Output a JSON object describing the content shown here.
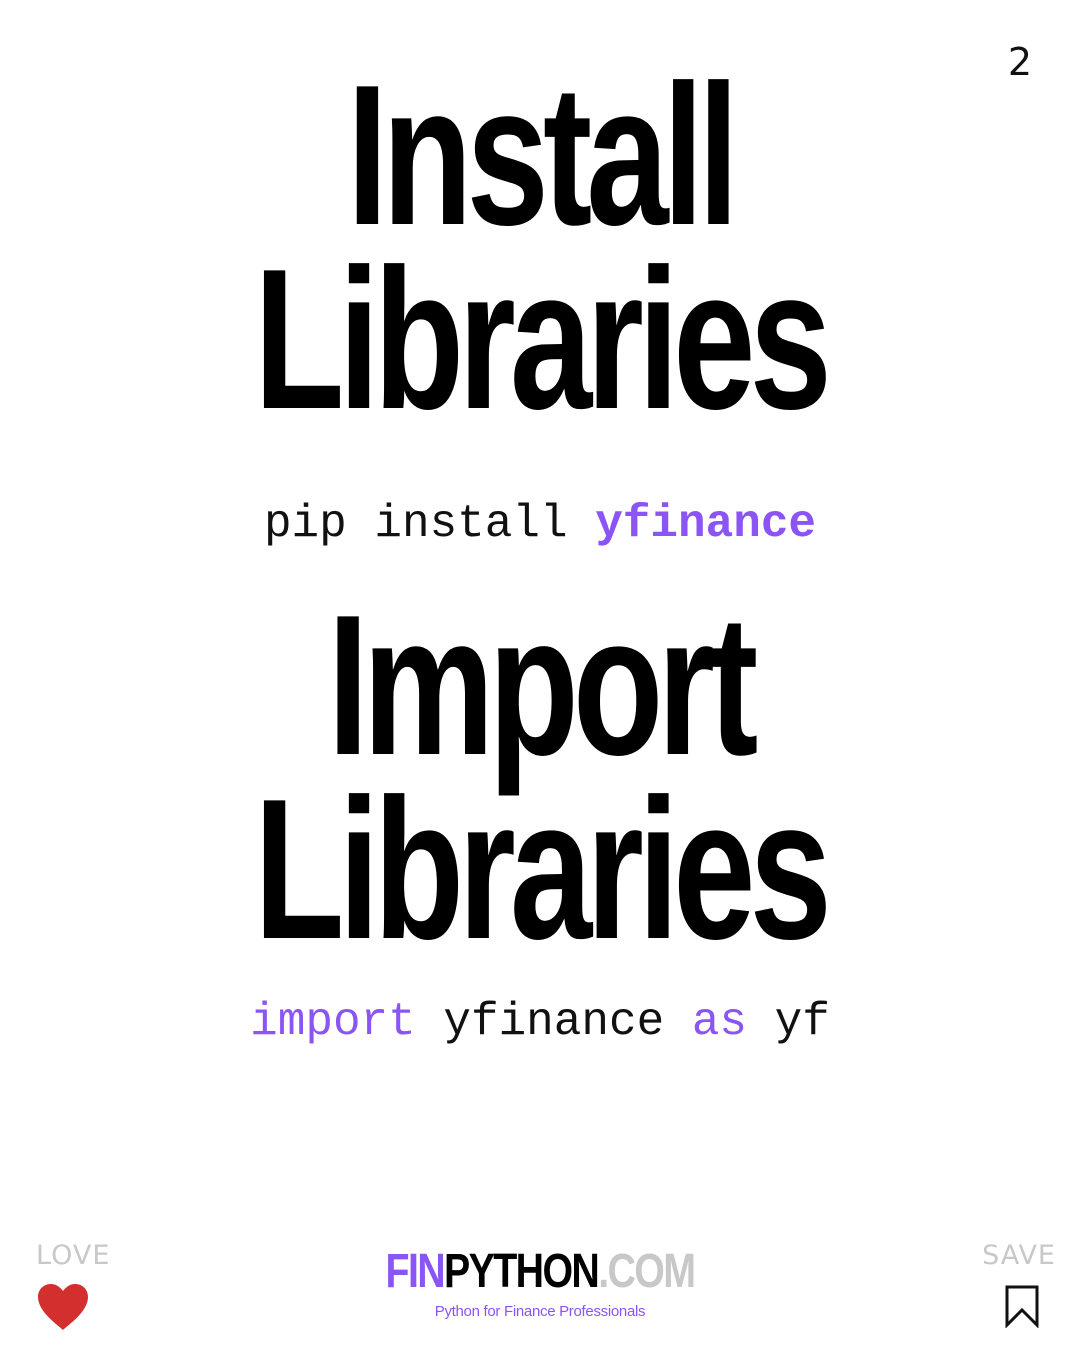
{
  "page_number": "2",
  "install_section": {
    "heading_line1": "Install",
    "heading_line2": "Libraries",
    "command": {
      "prefix": "pip install ",
      "package": "yfinance"
    }
  },
  "import_section": {
    "heading_line1": "Import",
    "heading_line2": "Libraries",
    "command": {
      "keyword_import": "import",
      "module": " yfinance ",
      "keyword_as": "as",
      "alias": " yf"
    }
  },
  "footer": {
    "love_label": "LOVE",
    "love_icon": "heart-icon",
    "save_label": "SAVE",
    "save_icon": "bookmark-icon",
    "brand": {
      "fin": "FIN",
      "python": "PYTHON",
      "com": ".COM"
    },
    "tagline": "Python for Finance Professionals"
  },
  "colors": {
    "accent": "#8B55F5",
    "heart": "#D32F2F",
    "muted": "#C8C8C8",
    "text": "#000000"
  }
}
